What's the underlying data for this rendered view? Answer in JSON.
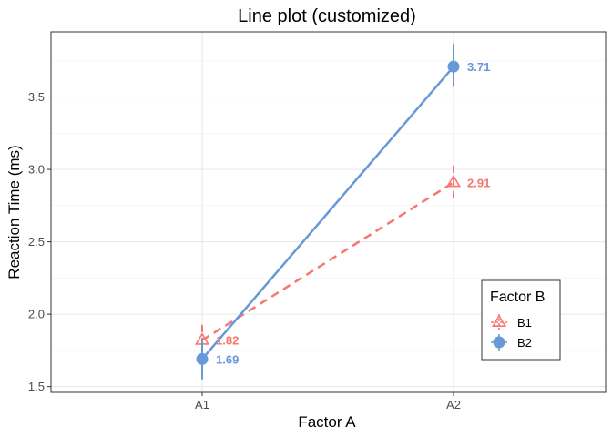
{
  "chart_data": {
    "type": "line",
    "title": "Line plot (customized)",
    "xlabel": "Factor A",
    "ylabel": "Reaction Time (ms)",
    "categories": [
      "A1",
      "A2"
    ],
    "ylim": [
      1.46,
      3.95
    ],
    "yticks": [
      1.5,
      2.0,
      2.5,
      3.0,
      3.5
    ],
    "ytick_labels": [
      "1.5",
      "2.0",
      "2.5",
      "3.0",
      "3.5"
    ],
    "grid": true,
    "legend": {
      "title": "Factor B",
      "placement": "bottom-right"
    },
    "series": [
      {
        "name": "B1",
        "values": [
          1.82,
          2.91
        ],
        "labels": [
          "1.82",
          "2.91"
        ],
        "error": [
          [
            1.7,
            1.96
          ],
          [
            2.8,
            3.04
          ]
        ],
        "color": "#F8766D",
        "line_style": "dashed",
        "marker": "triangle-open"
      },
      {
        "name": "B2",
        "values": [
          1.69,
          3.71
        ],
        "labels": [
          "1.69",
          "3.71"
        ],
        "error": [
          [
            1.55,
            1.83
          ],
          [
            3.57,
            3.87
          ]
        ],
        "color": "#6699D6",
        "line_style": "solid",
        "marker": "circle-filled"
      }
    ]
  }
}
